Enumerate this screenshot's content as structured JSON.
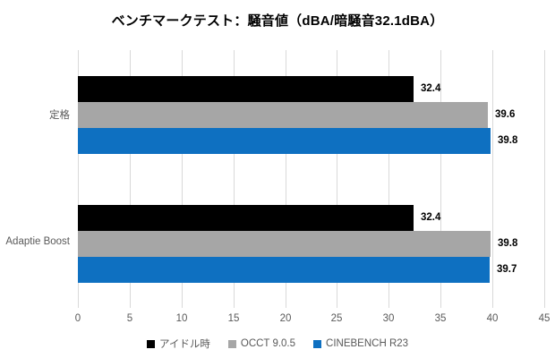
{
  "chart_data": {
    "type": "bar",
    "orientation": "horizontal",
    "title": "ベンチマークテスト：騒音値（dBA/暗騒音32.1dBA）",
    "categories": [
      "定格",
      "Adaptie Boost"
    ],
    "series": [
      {
        "name": "アイドル時",
        "color": "#000000",
        "values": [
          32.4,
          32.4
        ]
      },
      {
        "name": "OCCT 9.0.5",
        "color": "#a6a6a6",
        "values": [
          39.6,
          39.8
        ]
      },
      {
        "name": "CINEBENCH R23",
        "color": "#0e70c1",
        "values": [
          39.8,
          39.7
        ]
      }
    ],
    "xlim": [
      0,
      45
    ],
    "xticks": [
      0,
      5,
      10,
      15,
      20,
      25,
      30,
      35,
      40,
      45
    ],
    "value_labels": true,
    "grid": true,
    "legend_position": "bottom",
    "colors": {
      "background": "#ffffff",
      "gridline": "#d9d9d9",
      "axis_text": "#595959",
      "value_text": "#000000",
      "title_text": "#000000"
    }
  }
}
